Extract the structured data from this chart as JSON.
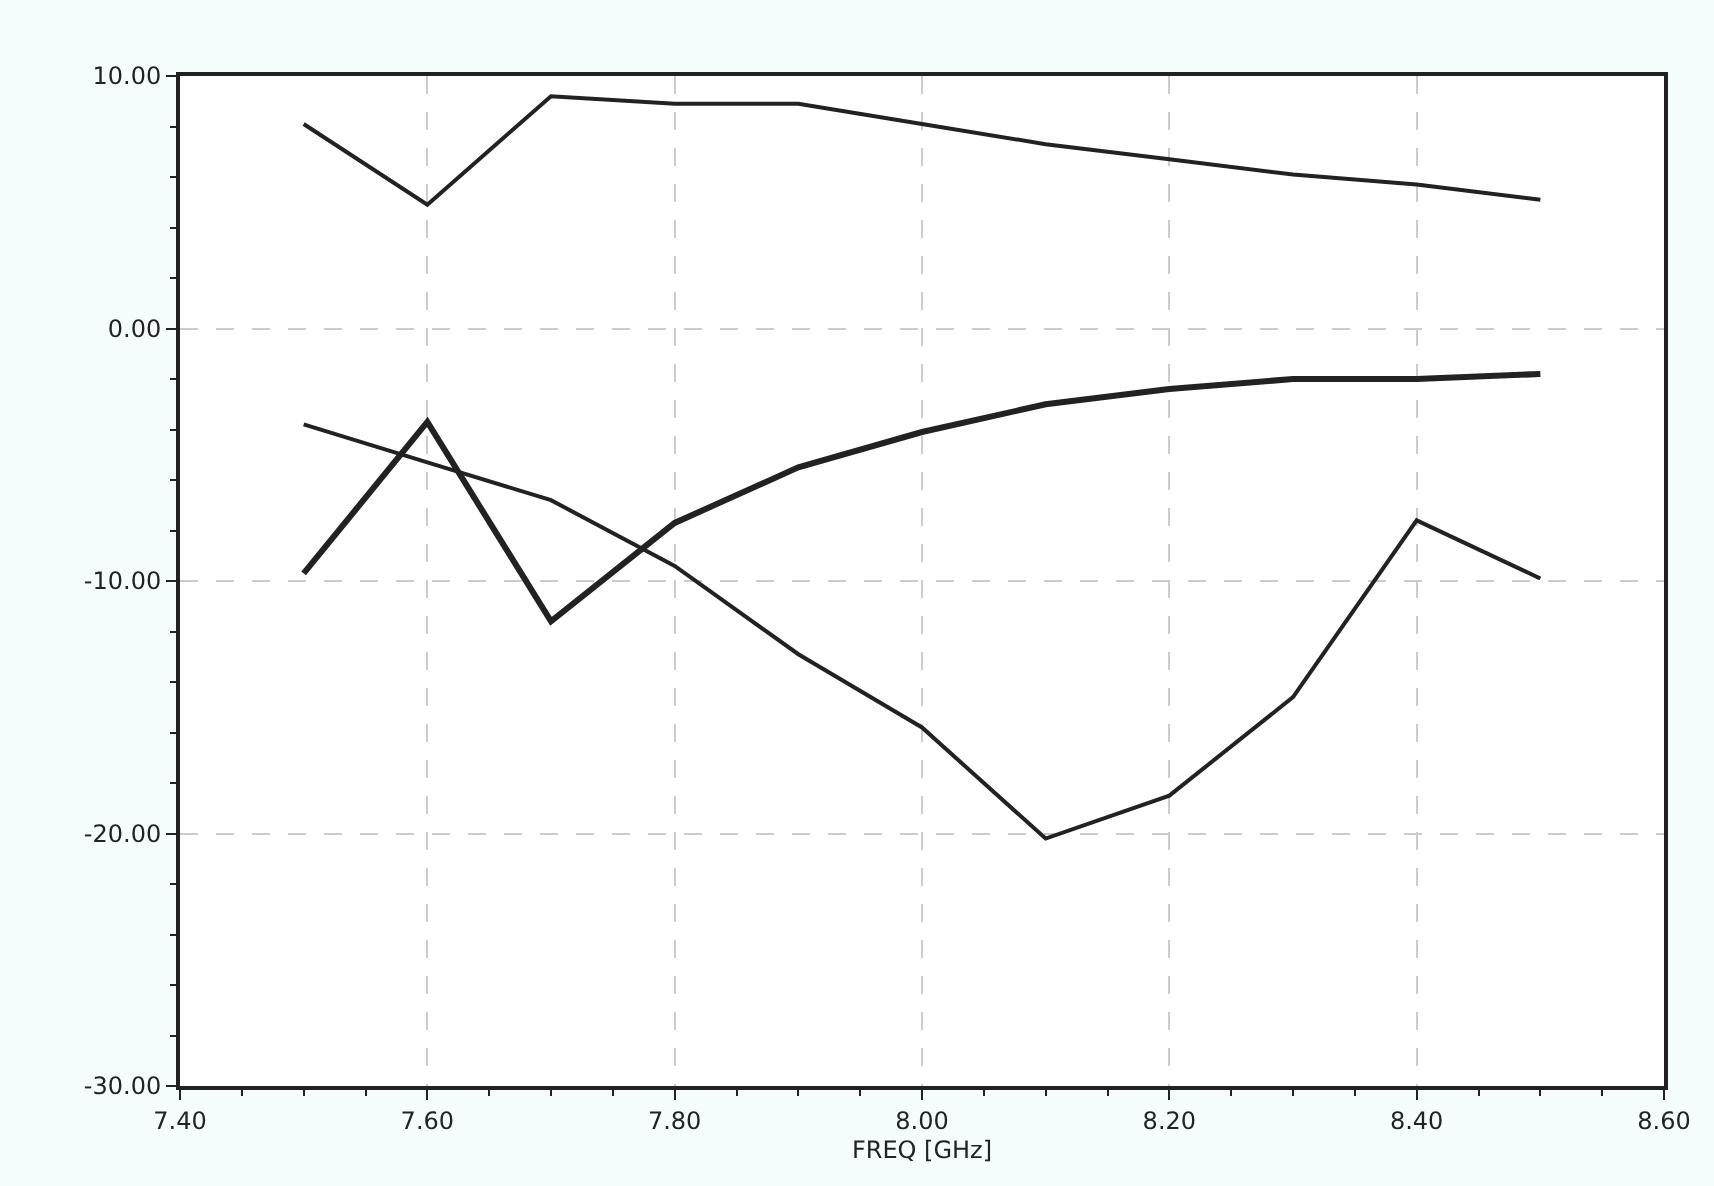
{
  "chart_data": {
    "type": "line",
    "xlabel": "FREQ [GHz]",
    "x": [
      7.5,
      7.6,
      7.7,
      7.8,
      7.9,
      8.0,
      8.1,
      8.2,
      8.3,
      8.4,
      8.5
    ],
    "series": [
      {
        "color": "#222222",
        "values": [
          8.1,
          4.9,
          9.2,
          8.9,
          8.9,
          8.1,
          7.3,
          6.7,
          6.1,
          5.7,
          5.1
        ]
      },
      {
        "color": "#222222",
        "values": [
          -9.7,
          -3.7,
          -11.6,
          -7.7,
          -5.5,
          -4.1,
          -3.0,
          -2.4,
          -2.0,
          -2.0,
          -1.8
        ]
      },
      {
        "color": "#222222",
        "values": [
          -3.8,
          -5.3,
          -6.8,
          -9.4,
          -12.9,
          -15.8,
          -20.2,
          -18.5,
          -14.6,
          -7.6,
          -9.9
        ]
      }
    ],
    "xlim": [
      7.4,
      8.6
    ],
    "xticks": [
      {
        "value": 7.4,
        "label": "7.40"
      },
      {
        "value": 7.6,
        "label": "7.60"
      },
      {
        "value": 7.8,
        "label": "7.80"
      },
      {
        "value": 8.0,
        "label": "8.00"
      },
      {
        "value": 8.2,
        "label": "8.20"
      },
      {
        "value": 8.4,
        "label": "8.40"
      },
      {
        "value": 8.6,
        "label": "8.60"
      }
    ],
    "ylim": [
      -30,
      10
    ],
    "yticks": [
      {
        "value": -30,
        "label": "-30.00"
      },
      {
        "value": -20,
        "label": "-20.00"
      },
      {
        "value": -10,
        "label": "-10.00"
      },
      {
        "value": 0,
        "label": "0.00"
      },
      {
        "value": 10,
        "label": "10.00"
      }
    ],
    "grid": true,
    "marker": "none",
    "line_style": "solid"
  }
}
